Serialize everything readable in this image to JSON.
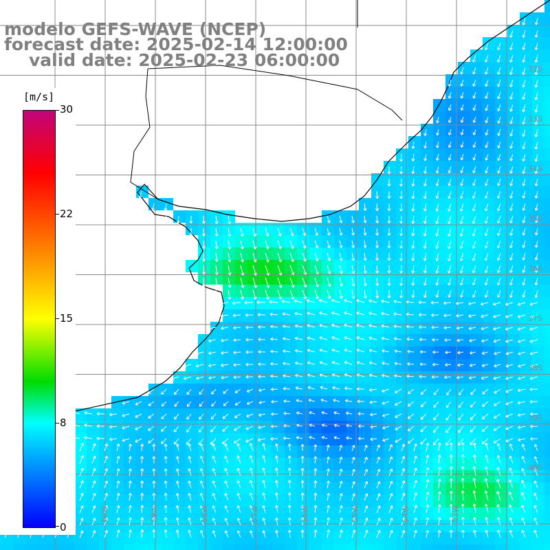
{
  "title": {
    "line1": "modelo GEFS-WAVE (NCEP)",
    "line2": "forecast date: 2025-02-14 12:00:00",
    "line3": "valid date: 2025-02-23 06:00:00"
  },
  "colorbar": {
    "unit": "[m/s]",
    "min": 0,
    "max": 30,
    "ticks": [
      "30",
      "22",
      "15",
      "8",
      "0"
    ],
    "colors": [
      "#0000ff",
      "#0096ff",
      "#00ffff",
      "#00dc00",
      "#ffff00",
      "#ff6a00",
      "#ff0000",
      "#c0047a"
    ]
  },
  "lat_labels": [
    "32S",
    "33S",
    "34S",
    "35S",
    "36S",
    "37S",
    "38S",
    "39S",
    "40S"
  ],
  "lon_labels": [
    "60W",
    "59W",
    "58W",
    "57W",
    "56W",
    "55W",
    "54W",
    "53W"
  ]
}
